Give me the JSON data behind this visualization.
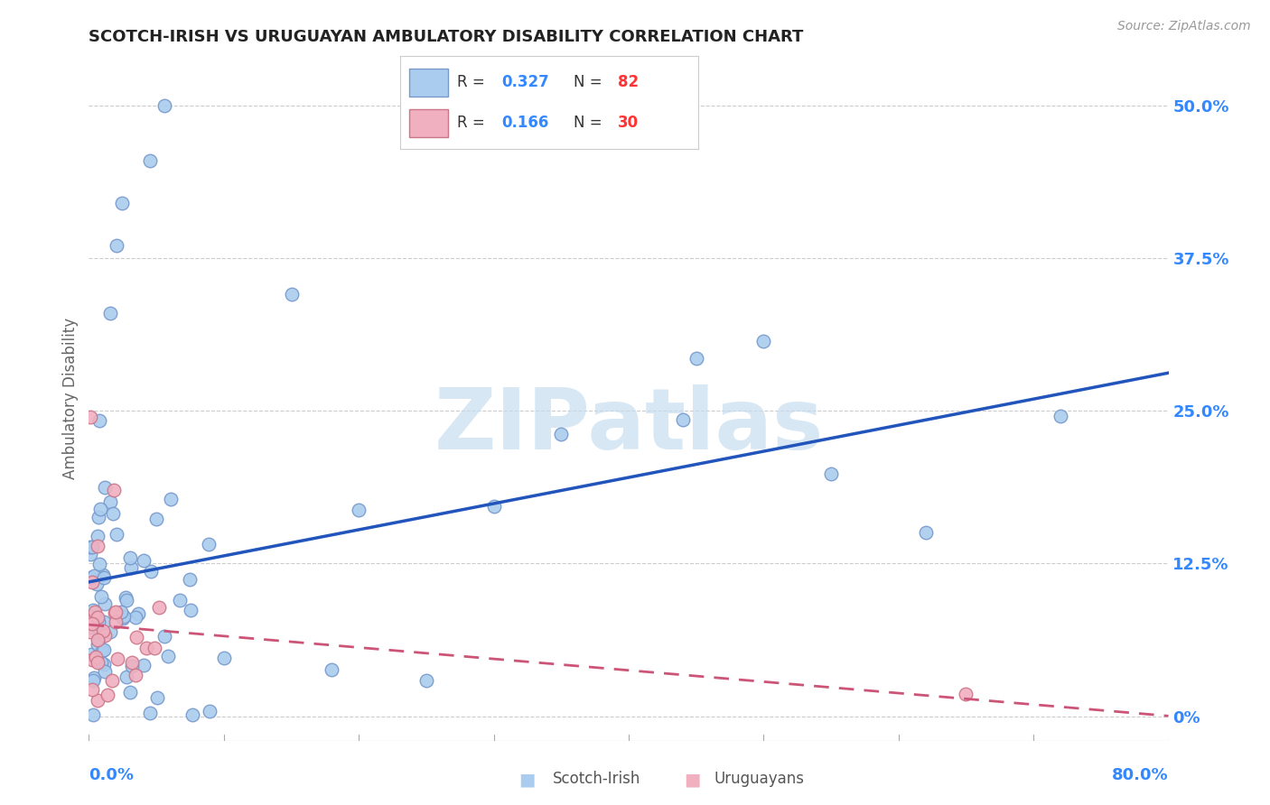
{
  "title": "SCOTCH-IRISH VS URUGUAYAN AMBULATORY DISABILITY CORRELATION CHART",
  "source": "Source: ZipAtlas.com",
  "ylabel": "Ambulatory Disability",
  "ytick_vals": [
    0.0,
    0.125,
    0.25,
    0.375,
    0.5
  ],
  "ytick_labels": [
    "0%",
    "12.5%",
    "25.0%",
    "37.5%",
    "50.0%"
  ],
  "xmin": 0.0,
  "xmax": 0.8,
  "ymin": -0.02,
  "ymax": 0.54,
  "scotch_irish_color": "#aaccee",
  "scotch_irish_edge": "#7799cc",
  "uruguayan_color": "#f0b0c0",
  "uruguayan_edge": "#cc7788",
  "scotch_irish_line_color": "#2255bb",
  "uruguayan_line_color": "#cc5577",
  "scotch_irish_R": "0.327",
  "scotch_irish_N": "82",
  "uruguayan_R": "0.166",
  "uruguayan_N": "30",
  "R_color": "#3388ff",
  "N_color": "#ff3333",
  "background_color": "#ffffff",
  "grid_color": "#cccccc",
  "title_color": "#222222",
  "axis_label_color": "#3388ff",
  "watermark_color": "#c8ddf0",
  "source_color": "#999999"
}
